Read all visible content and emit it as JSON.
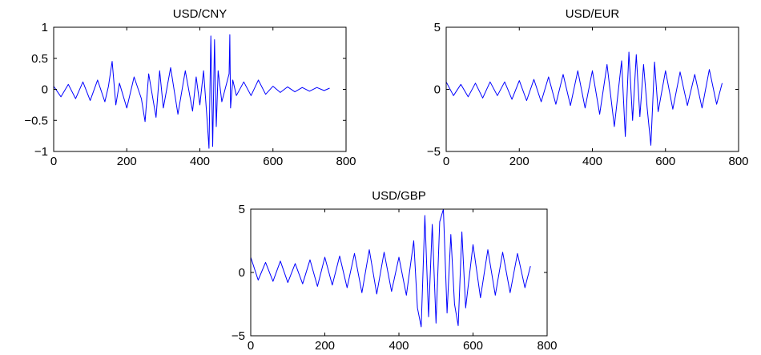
{
  "colors": {
    "series": "#0000ff",
    "axis": "#000000",
    "background": "#ffffff"
  },
  "chart_data": [
    {
      "type": "line",
      "title": "USD/CNY",
      "xlim": [
        0,
        800
      ],
      "ylim": [
        -1,
        1
      ],
      "xticks": [
        0,
        200,
        400,
        600,
        800
      ],
      "yticks": [
        -1,
        -0.5,
        0,
        0.5,
        1
      ],
      "xtick_labels": [
        "0",
        "200",
        "400",
        "600",
        "800"
      ],
      "ytick_labels": [
        "−1",
        "−0.5",
        "0",
        "0.5",
        "1"
      ],
      "grid": false,
      "series": [
        {
          "x": [
            0,
            20,
            40,
            60,
            80,
            100,
            120,
            140,
            150,
            160,
            170,
            180,
            200,
            220,
            240,
            250,
            260,
            280,
            290,
            300,
            320,
            340,
            360,
            380,
            390,
            400,
            410,
            420,
            425,
            430,
            435,
            440,
            445,
            450,
            460,
            480,
            482,
            484,
            490,
            500,
            520,
            540,
            560,
            580,
            600,
            620,
            640,
            660,
            680,
            700,
            720,
            740,
            755
          ],
          "y": [
            0.05,
            -0.12,
            0.08,
            -0.15,
            0.12,
            -0.18,
            0.15,
            -0.2,
            0.05,
            0.45,
            -0.25,
            0.1,
            -0.3,
            0.2,
            -0.15,
            -0.52,
            0.25,
            -0.45,
            0.3,
            -0.3,
            0.35,
            -0.4,
            0.3,
            -0.35,
            0.2,
            -0.25,
            0.3,
            -0.5,
            -0.95,
            0.86,
            -0.92,
            0.8,
            -0.6,
            0.3,
            -0.2,
            0.25,
            0.88,
            -0.3,
            0.15,
            -0.1,
            0.12,
            -0.1,
            0.15,
            -0.08,
            0.05,
            -0.05,
            0.04,
            -0.04,
            0.03,
            -0.03,
            0.03,
            -0.02,
            0.02
          ]
        }
      ]
    },
    {
      "type": "line",
      "title": "USD/EUR",
      "xlim": [
        0,
        800
      ],
      "ylim": [
        -5,
        5
      ],
      "xticks": [
        0,
        200,
        400,
        600,
        800
      ],
      "yticks": [
        -5,
        0,
        5
      ],
      "xtick_labels": [
        "0",
        "200",
        "400",
        "600",
        "800"
      ],
      "ytick_labels": [
        "−5",
        "0",
        "5"
      ],
      "grid": false,
      "series": [
        {
          "x": [
            0,
            20,
            40,
            60,
            80,
            100,
            120,
            140,
            160,
            180,
            200,
            220,
            240,
            260,
            280,
            300,
            320,
            340,
            360,
            380,
            400,
            420,
            440,
            460,
            480,
            490,
            500,
            510,
            520,
            530,
            540,
            550,
            560,
            570,
            580,
            600,
            620,
            640,
            660,
            680,
            700,
            720,
            740,
            755
          ],
          "y": [
            0.6,
            -0.5,
            0.4,
            -0.6,
            0.5,
            -0.7,
            0.6,
            -0.5,
            0.6,
            -0.8,
            0.7,
            -0.9,
            0.8,
            -1.0,
            1.0,
            -1.2,
            1.2,
            -1.3,
            1.5,
            -1.5,
            1.5,
            -2.0,
            2.0,
            -3.0,
            2.3,
            -3.8,
            3.0,
            -2.5,
            2.8,
            -2.2,
            2.0,
            -1.5,
            -4.5,
            2.2,
            -1.8,
            1.5,
            -1.6,
            1.4,
            -1.3,
            1.2,
            -1.5,
            1.6,
            -1.2,
            0.5
          ]
        }
      ]
    },
    {
      "type": "line",
      "title": "USD/GBP",
      "xlim": [
        0,
        800
      ],
      "ylim": [
        -5,
        5
      ],
      "xticks": [
        0,
        200,
        400,
        600,
        800
      ],
      "yticks": [
        -5,
        0,
        5
      ],
      "xtick_labels": [
        "0",
        "200",
        "400",
        "600",
        "800"
      ],
      "ytick_labels": [
        "−5",
        "0",
        "5"
      ],
      "grid": false,
      "series": [
        {
          "x": [
            0,
            20,
            40,
            60,
            80,
            100,
            120,
            140,
            160,
            180,
            200,
            220,
            240,
            260,
            280,
            300,
            320,
            340,
            360,
            380,
            400,
            420,
            440,
            450,
            460,
            470,
            480,
            490,
            500,
            510,
            520,
            530,
            540,
            550,
            560,
            570,
            580,
            600,
            620,
            640,
            660,
            680,
            700,
            720,
            740,
            755
          ],
          "y": [
            1.2,
            -0.6,
            0.8,
            -0.7,
            0.9,
            -0.8,
            0.7,
            -0.9,
            1.0,
            -1.1,
            1.2,
            -1.0,
            1.3,
            -1.2,
            1.5,
            -1.6,
            1.8,
            -1.7,
            1.6,
            -1.5,
            1.2,
            -1.8,
            2.5,
            -2.8,
            -4.3,
            4.5,
            -3.5,
            3.8,
            -4.0,
            4.0,
            5.0,
            -3.2,
            3.0,
            -2.5,
            -4.2,
            3.2,
            -2.8,
            2.2,
            -2.0,
            1.8,
            -1.8,
            1.6,
            -1.6,
            1.5,
            -1.2,
            0.5
          ]
        }
      ]
    }
  ]
}
